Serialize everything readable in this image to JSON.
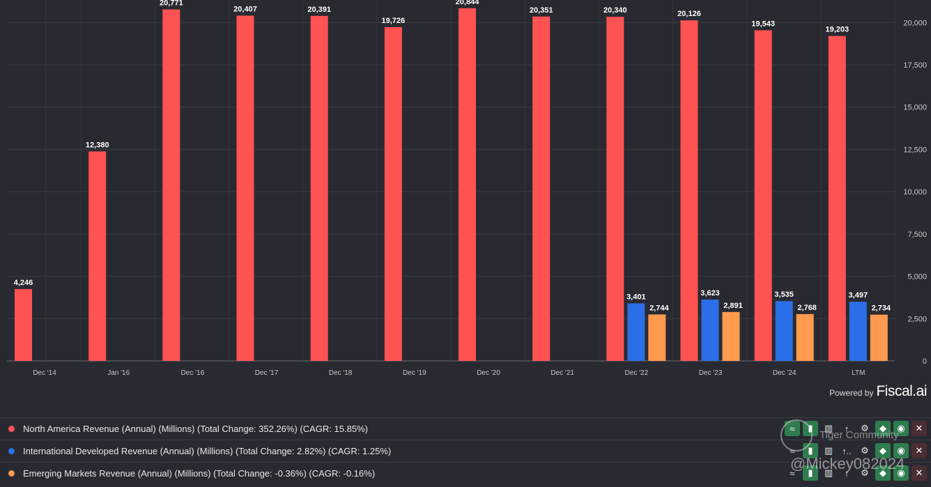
{
  "chart_data": {
    "type": "bar",
    "categories": [
      "Dec '14",
      "Jan '16",
      "Dec '16",
      "Dec '17",
      "Dec '18",
      "Dec '19",
      "Dec '20",
      "Dec '21",
      "Dec '22",
      "Dec '23",
      "Dec '24",
      "LTM"
    ],
    "series": [
      {
        "name": "North America Revenue",
        "color": "#ff5252",
        "values": [
          4246,
          12380,
          20771,
          20407,
          20391,
          19726,
          20844,
          20351,
          20340,
          20126,
          19543,
          19203
        ],
        "labels": [
          "4,246",
          "12,380",
          "20,771",
          "20,407",
          "20,391",
          "19,726",
          "20,844",
          "20,351",
          "20,340",
          "20,126",
          "19,543",
          "19,203"
        ]
      },
      {
        "name": "International Developed Revenue",
        "color": "#2b6fe8",
        "values": [
          null,
          null,
          null,
          null,
          null,
          null,
          null,
          null,
          3401,
          3623,
          3535,
          3497
        ],
        "labels": [
          null,
          null,
          null,
          null,
          null,
          null,
          null,
          null,
          "3,401",
          "3,623",
          "3,535",
          "3,497"
        ]
      },
      {
        "name": "Emerging Markets Revenue",
        "color": "#ff9a4f",
        "values": [
          null,
          null,
          null,
          null,
          null,
          null,
          null,
          null,
          2744,
          2891,
          2768,
          2734
        ],
        "labels": [
          null,
          null,
          null,
          null,
          null,
          null,
          null,
          null,
          "2,744",
          "2,891",
          "2,768",
          "2,734"
        ]
      }
    ],
    "y_ticks": [
      "0",
      "2,500",
      "5,000",
      "7,500",
      "10,000",
      "12,500",
      "15,000",
      "17,500",
      "20,000"
    ],
    "y_tick_values": [
      0,
      2500,
      5000,
      7500,
      10000,
      12500,
      15000,
      17500,
      20000
    ],
    "ylim": [
      0,
      21000
    ],
    "grid": true,
    "y_axis_side": "right"
  },
  "branding": {
    "powered_by": "Powered by",
    "brand": "Fiscal.ai"
  },
  "legend": [
    {
      "text": "North America Revenue (Annual) (Millions) (Total Change: 352.26%) (CAGR: 15.85%)",
      "color": "#ff5252"
    },
    {
      "text": "International Developed Revenue (Annual) (Millions) (Total Change: 2.82%) (CAGR: 1.25%)",
      "color": "#2b6fe8"
    },
    {
      "text": "Emerging Markets Revenue (Annual) (Millions) (Total Change: -0.36%) (CAGR: -0.16%)",
      "color": "#ff9a4f"
    }
  ],
  "actions": {
    "close": "✕",
    "settings": "⚙",
    "arrow": "↑",
    "arrow_more": "↑.."
  },
  "watermark": {
    "community": "Tiger Community",
    "handle": "@Mickey082024"
  }
}
